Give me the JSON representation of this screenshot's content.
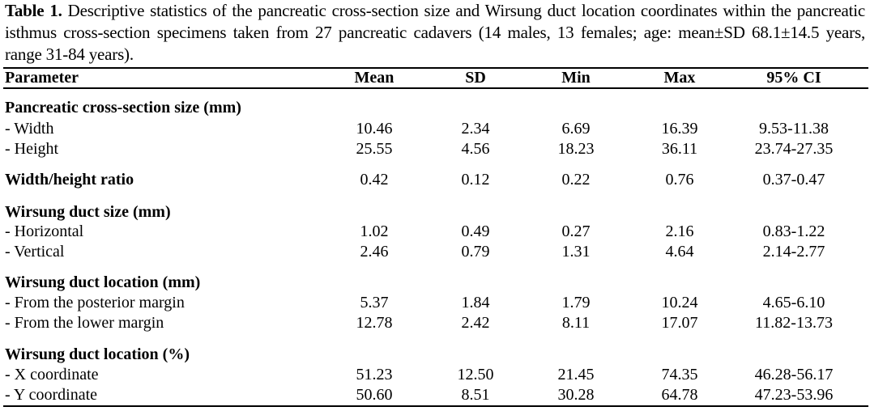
{
  "caption": {
    "label": "Table 1.",
    "text": " Descriptive statistics of the pancreatic cross-section size and Wirsung duct location coordinates within the pancreatic isthmus cross-section specimens taken from 27 pancreatic cadavers (14 males, 13 females; age: mean±SD 68.1±14.5 years, range 31-84 years)."
  },
  "headers": [
    "Parameter",
    "Mean",
    "SD",
    "Min",
    "Max",
    "95% CI"
  ],
  "sections": [
    {
      "title": "Pancreatic cross-section size (mm)",
      "rows": [
        {
          "label": "- Width",
          "values": [
            "10.46",
            "2.34",
            "6.69",
            "16.39",
            "9.53-11.38"
          ]
        },
        {
          "label": "- Height",
          "values": [
            "25.55",
            "4.56",
            "18.23",
            "36.11",
            "23.74-27.35"
          ]
        }
      ]
    },
    {
      "title": "Width/height ratio",
      "values": [
        "0.42",
        "0.12",
        "0.22",
        "0.76",
        "0.37-0.47"
      ],
      "rows": []
    },
    {
      "title": "Wirsung duct size (mm)",
      "rows": [
        {
          "label": "- Horizontal",
          "values": [
            "1.02",
            "0.49",
            "0.27",
            "2.16",
            "0.83-1.22"
          ]
        },
        {
          "label": "- Vertical",
          "values": [
            "2.46",
            "0.79",
            "1.31",
            "4.64",
            "2.14-2.77"
          ]
        }
      ]
    },
    {
      "title": "Wirsung duct location (mm)",
      "rows": [
        {
          "label": "- From the posterior margin",
          "values": [
            "5.37",
            "1.84",
            "1.79",
            "10.24",
            "4.65-6.10"
          ]
        },
        {
          "label": "- From the lower margin",
          "values": [
            "12.78",
            "2.42",
            "8.11",
            "17.07",
            "11.82-13.73"
          ]
        }
      ]
    },
    {
      "title": "Wirsung duct location (%)",
      "rows": [
        {
          "label": "- X coordinate",
          "values": [
            "51.23",
            "12.50",
            "21.45",
            "74.35",
            "46.28-56.17"
          ]
        },
        {
          "label": "- Y coordinate",
          "values": [
            "50.60",
            "8.51",
            "30.28",
            "64.78",
            "47.23-53.96"
          ]
        }
      ]
    }
  ]
}
